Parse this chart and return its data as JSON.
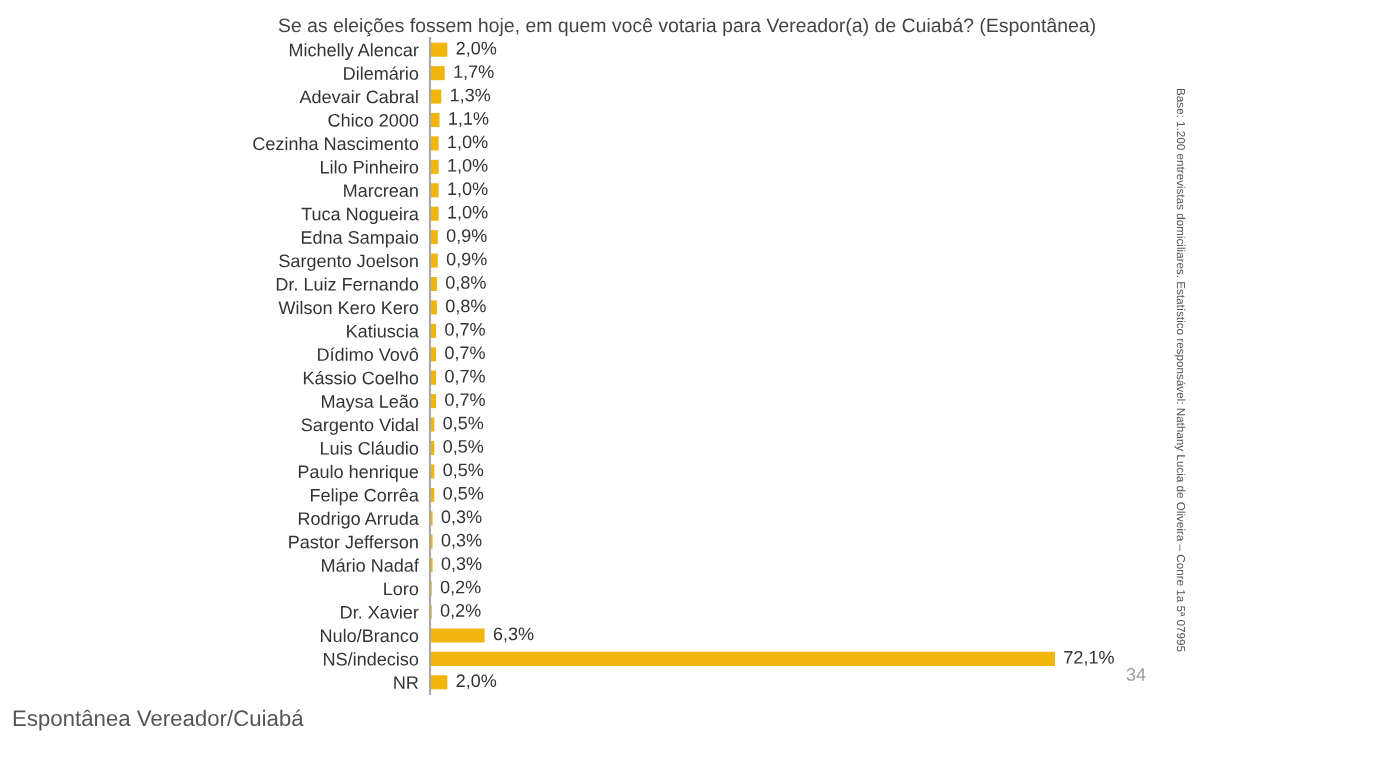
{
  "chart_data": {
    "type": "bar",
    "orientation": "horizontal",
    "title": "Se as eleições fossem hoje, em quem você votaria para Vereador(a) de Cuiabá? (Espontânea)",
    "categories": [
      "Michelly Alencar",
      "Dilemário",
      "Adevair Cabral",
      "Chico 2000",
      "Cezinha Nascimento",
      "Lilo Pinheiro",
      "Marcrean",
      "Tuca Nogueira",
      "Edna Sampaio",
      "Sargento Joelson",
      "Dr. Luiz Fernando",
      "Wilson Kero Kero",
      "Katiuscia",
      "Dídimo Vovô",
      "Kássio Coelho",
      "Maysa Leão",
      "Sargento Vidal",
      "Luis Cláudio",
      "Paulo henrique",
      "Felipe Corrêa",
      "Rodrigo Arruda",
      "Pastor Jefferson",
      "Mário Nadaf",
      "Loro",
      "Dr. Xavier",
      "Nulo/Branco",
      "NS/indeciso",
      "NR"
    ],
    "values": [
      2.0,
      1.7,
      1.3,
      1.1,
      1.0,
      1.0,
      1.0,
      1.0,
      0.9,
      0.9,
      0.8,
      0.8,
      0.7,
      0.7,
      0.7,
      0.7,
      0.5,
      0.5,
      0.5,
      0.5,
      0.3,
      0.3,
      0.3,
      0.2,
      0.2,
      6.3,
      72.1,
      2.0
    ],
    "value_labels": [
      "2,0%",
      "1,7%",
      "1,3%",
      "1,1%",
      "1,0%",
      "1,0%",
      "1,0%",
      "1,0%",
      "0,9%",
      "0,9%",
      "0,8%",
      "0,8%",
      "0,7%",
      "0,7%",
      "0,7%",
      "0,7%",
      "0,5%",
      "0,5%",
      "0,5%",
      "0,5%",
      "0,3%",
      "0,3%",
      "0,3%",
      "0,2%",
      "0,2%",
      "6,3%",
      "72,1%",
      "2,0%"
    ],
    "color": "#f2b50c",
    "grid": false,
    "legend": false,
    "annotations": [
      "Base: 1.200 entrevistas domiciliares. Estatístico responsável: Nathany Lucia de Oliveira – Conre 1a 5ª 07995",
      "34",
      "Espontânea Vereador/Cuiabá"
    ]
  }
}
